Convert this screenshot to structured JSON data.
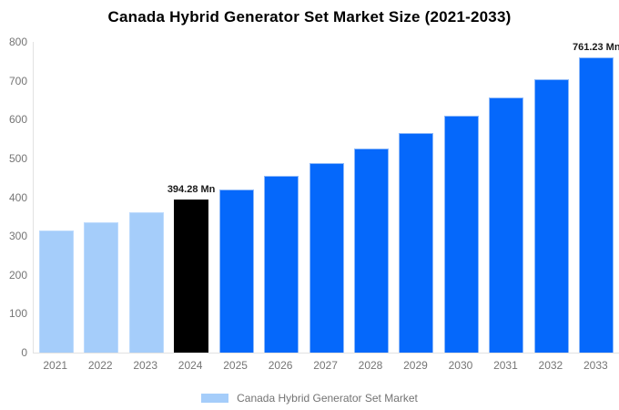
{
  "title": "Canada Hybrid Generator Set Market Size (2021-2033)",
  "legend": {
    "label": "Canada Hybrid Generator Set Market",
    "swatch_color": "#a5cdfa"
  },
  "colors": {
    "historical": "#a5cdfa",
    "base": "#000000",
    "forecast": "#0568fb",
    "axis_text": "#757575",
    "title_text": "#000000",
    "axis_line": "#e2e2e2"
  },
  "chart_data": {
    "type": "bar",
    "title": "Canada Hybrid Generator Set Market Size (2021-2033)",
    "xlabel": "",
    "ylabel": "",
    "categories": [
      "2021",
      "2022",
      "2023",
      "2024",
      "2025",
      "2026",
      "2027",
      "2028",
      "2029",
      "2030",
      "2031",
      "2032",
      "2033"
    ],
    "values": [
      314,
      336,
      362,
      394.28,
      420,
      454,
      489,
      525,
      566,
      609,
      658,
      705,
      761.23
    ],
    "segments": [
      "historical",
      "historical",
      "historical",
      "base",
      "forecast",
      "forecast",
      "forecast",
      "forecast",
      "forecast",
      "forecast",
      "forecast",
      "forecast",
      "forecast"
    ],
    "ylim": [
      0,
      800
    ],
    "yticks": [
      0,
      100,
      200,
      300,
      400,
      500,
      600,
      700,
      800
    ],
    "grid": false,
    "legend_position": "bottom",
    "annotations": [
      {
        "category": "2024",
        "text": "394.28 Mn"
      },
      {
        "category": "2033",
        "text": "761.23 Mn"
      }
    ]
  }
}
